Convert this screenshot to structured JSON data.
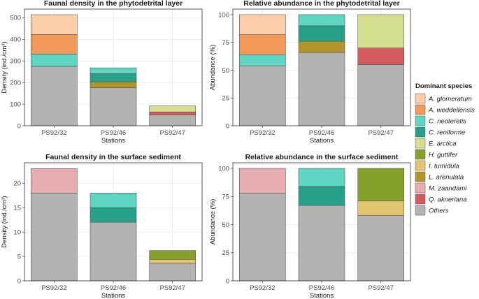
{
  "legend": {
    "title": "Dominant species",
    "items": [
      {
        "name": "A. glomeratum",
        "color": "#fdcca8"
      },
      {
        "name": "A. weddellensis",
        "color": "#f19a5c"
      },
      {
        "name": "C. neoteretis",
        "color": "#5ed6c1"
      },
      {
        "name": "C. reniforme",
        "color": "#27a089"
      },
      {
        "name": "E. arctica",
        "color": "#d4e08f"
      },
      {
        "name": "H. guttifer",
        "color": "#86a12a"
      },
      {
        "name": "I. tumidula",
        "color": "#e3c470"
      },
      {
        "name": "L. arenulata",
        "color": "#b39428"
      },
      {
        "name": "M. zaandami",
        "color": "#e8adb0"
      },
      {
        "name": "Q. akneriana",
        "color": "#d45a5e"
      },
      {
        "name": "Others",
        "color": "#b3b3b3"
      }
    ]
  },
  "chart_data": [
    {
      "type": "bar",
      "stacked": true,
      "title": "Faunal density in the phytodetrital layer",
      "xlabel": "Stations",
      "ylabel": "Density (ind./cm³)",
      "categories": [
        "PS92/32",
        "PS92/46",
        "PS92/47"
      ],
      "ylim": [
        0,
        540
      ],
      "yticks": [
        0,
        100,
        200,
        300,
        400,
        500
      ],
      "stacks": [
        [
          {
            "species": "Others",
            "value": 275
          },
          {
            "species": "C. neoteretis",
            "value": 57
          },
          {
            "species": "A. weddellensis",
            "value": 90
          },
          {
            "species": "A. glomeratum",
            "value": 92
          }
        ],
        [
          {
            "species": "Others",
            "value": 176
          },
          {
            "species": "L. arenulata",
            "value": 27
          },
          {
            "species": "C. reniforme",
            "value": 38
          },
          {
            "species": "C. neoteretis",
            "value": 27
          }
        ],
        [
          {
            "species": "Others",
            "value": 50
          },
          {
            "species": "Q. akneriana",
            "value": 14
          },
          {
            "species": "E. arctica",
            "value": 28
          }
        ]
      ]
    },
    {
      "type": "bar",
      "stacked": true,
      "title": "Relative abundance in the phytodetrital layer",
      "xlabel": "Stations",
      "ylabel": "Abundance (%)",
      "categories": [
        "PS92/32",
        "PS92/46",
        "PS92/47"
      ],
      "ylim": [
        0,
        105
      ],
      "yticks": [
        0,
        25,
        50,
        75,
        100
      ],
      "stacks": [
        [
          {
            "species": "Others",
            "value": 54
          },
          {
            "species": "C. neoteretis",
            "value": 10
          },
          {
            "species": "A. weddellensis",
            "value": 18
          },
          {
            "species": "A. glomeratum",
            "value": 18
          }
        ],
        [
          {
            "species": "Others",
            "value": 66
          },
          {
            "species": "L. arenulata",
            "value": 10
          },
          {
            "species": "C. reniforme",
            "value": 14
          },
          {
            "species": "C. neoteretis",
            "value": 10
          }
        ],
        [
          {
            "species": "Others",
            "value": 55
          },
          {
            "species": "Q. akneriana",
            "value": 15
          },
          {
            "species": "E. arctica",
            "value": 30
          }
        ]
      ]
    },
    {
      "type": "bar",
      "stacked": true,
      "title": "Faunal density in the surface sediment",
      "xlabel": "Stations",
      "ylabel": "Density (ind./cm³)",
      "categories": [
        "PS92/32",
        "PS92/46",
        "PS92/47"
      ],
      "ylim": [
        0,
        24.2
      ],
      "yticks": [
        0,
        5,
        10,
        15,
        20
      ],
      "stacks": [
        [
          {
            "species": "Others",
            "value": 18
          },
          {
            "species": "M. zaandami",
            "value": 5
          }
        ],
        [
          {
            "species": "Others",
            "value": 12
          },
          {
            "species": "C. reniforme",
            "value": 3
          },
          {
            "species": "C. neoteretis",
            "value": 3
          }
        ],
        [
          {
            "species": "Others",
            "value": 3.6
          },
          {
            "species": "I. tumidula",
            "value": 0.8
          },
          {
            "species": "H. guttifer",
            "value": 1.8
          }
        ]
      ]
    },
    {
      "type": "bar",
      "stacked": true,
      "title": "Relative abundance in the surface sediment",
      "xlabel": "Stations",
      "ylabel": "Abundance (%)",
      "categories": [
        "PS92/32",
        "PS92/46",
        "PS92/47"
      ],
      "ylim": [
        0,
        105
      ],
      "yticks": [
        0,
        25,
        50,
        75,
        100
      ],
      "stacks": [
        [
          {
            "species": "Others",
            "value": 78
          },
          {
            "species": "M. zaandami",
            "value": 22
          }
        ],
        [
          {
            "species": "Others",
            "value": 67
          },
          {
            "species": "C. reniforme",
            "value": 17
          },
          {
            "species": "C. neoteretis",
            "value": 16
          }
        ],
        [
          {
            "species": "Others",
            "value": 58
          },
          {
            "species": "I. tumidula",
            "value": 13
          },
          {
            "species": "H. guttifer",
            "value": 29
          }
        ]
      ]
    }
  ]
}
